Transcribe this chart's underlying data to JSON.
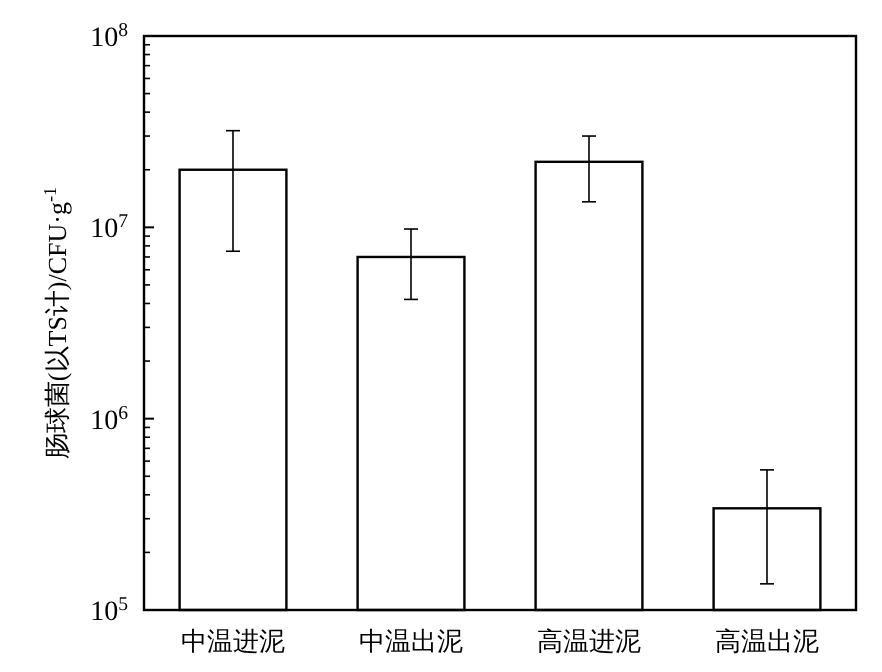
{
  "chart_data": {
    "type": "bar",
    "ylabel": "肠球菌(以TS计)/CFU·g$^{-1}$",
    "log": "y",
    "color": "#ffffff",
    "categories": [
      "中温进泥",
      "中温出泥",
      "高温进泥",
      "高温出泥"
    ],
    "values": [
      20000000,
      7000000,
      22000000,
      340000
    ],
    "errors": [
      [
        7500000,
        32000000
      ],
      [
        4200000,
        9800000
      ],
      [
        13600000,
        30000000
      ],
      [
        137000,
        540000
      ]
    ],
    "ylim": [
      100000,
      100000000
    ],
    "yticks": [
      {
        "value": 100000,
        "label": "10$^{5}$"
      },
      {
        "value": 1000000,
        "label": "10$^{6}$"
      },
      {
        "value": 10000000,
        "label": "10$^{7}$"
      },
      {
        "value": 100000000,
        "label": "10$^{8}$"
      }
    ],
    "grid": false
  }
}
